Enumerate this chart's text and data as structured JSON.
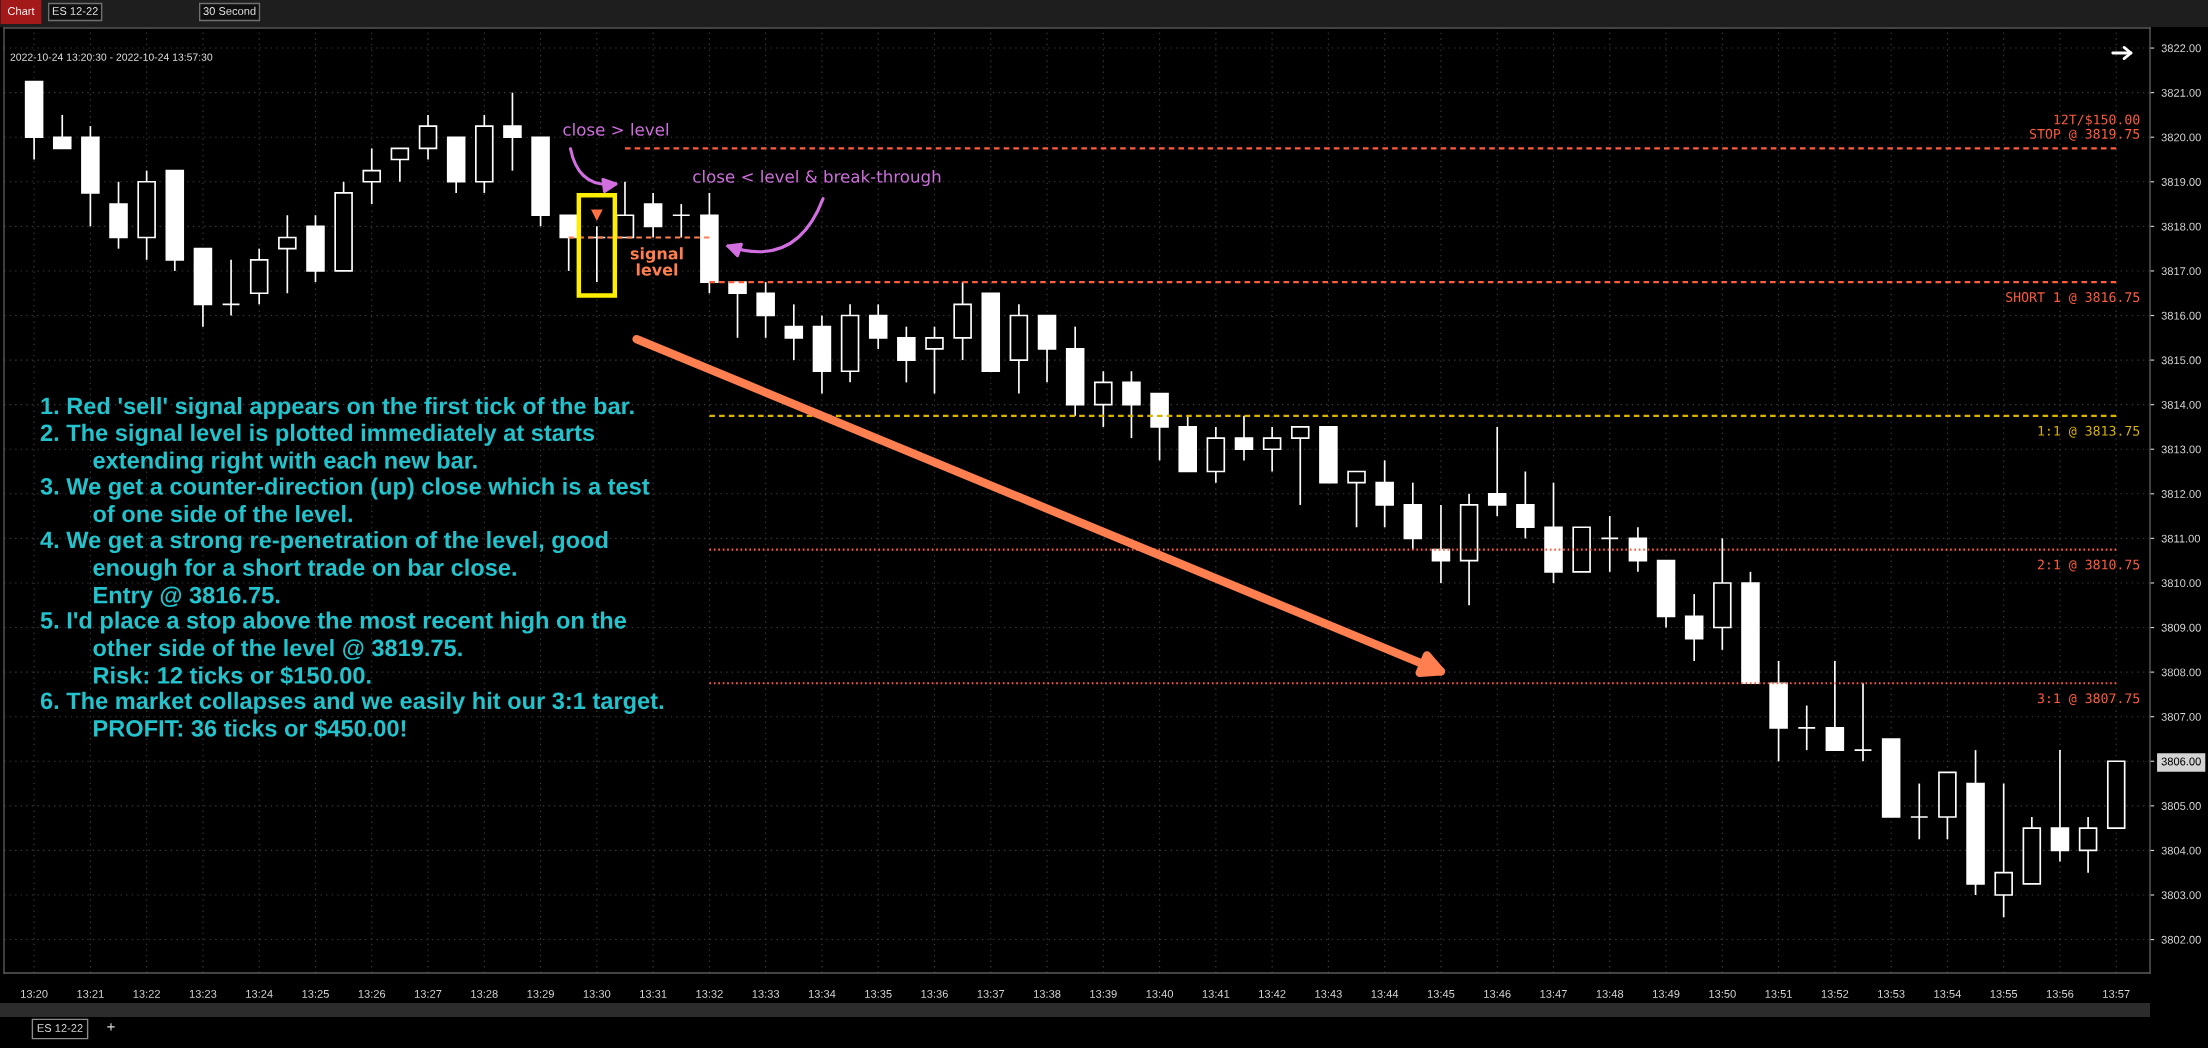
{
  "chart_data": {
    "type": "candlestick",
    "title": "2022-10-24 13:20:30 - 2022-10-24 13:57:30",
    "color": "#ffffff",
    "categories": [
      "13:20",
      null,
      "13:21",
      null,
      "13:22",
      null,
      "13:23",
      null,
      "13:24",
      null,
      "13:25",
      null,
      "13:26",
      null,
      "13:27",
      null,
      "13:28",
      null,
      "13:29",
      null,
      "13:30",
      null,
      "13:31",
      null,
      "13:32",
      null,
      "13:33",
      null,
      "13:34",
      null,
      "13:35",
      null,
      "13:36",
      null,
      "13:37",
      null,
      "13:38",
      null,
      "13:39",
      null,
      "13:40",
      null,
      "13:41",
      null,
      "13:42",
      null,
      "13:43",
      null,
      "13:44",
      null,
      "13:45",
      null,
      "13:46",
      null,
      "13:47",
      null,
      "13:48",
      null,
      "13:49",
      null,
      "13:50",
      null,
      "13:51",
      null,
      "13:52",
      null,
      "13:53",
      null,
      "13:54",
      null,
      "13:55",
      null,
      "13:56",
      null,
      "13:57"
    ],
    "ohlc": [
      [
        3821.25,
        3821.25,
        3819.5,
        3820.0
      ],
      [
        3820.0,
        3820.5,
        3819.75,
        3819.75
      ],
      [
        3820.0,
        3820.25,
        3818.0,
        3818.75
      ],
      [
        3818.5,
        3819.0,
        3817.5,
        3817.75
      ],
      [
        3817.75,
        3819.25,
        3817.25,
        3819.0
      ],
      [
        3819.25,
        3819.25,
        3817.0,
        3817.25
      ],
      [
        3817.5,
        3817.5,
        3815.75,
        3816.25
      ],
      [
        3816.25,
        3817.25,
        3816.0,
        3816.25
      ],
      [
        3816.5,
        3817.5,
        3816.25,
        3817.25
      ],
      [
        3817.5,
        3818.25,
        3816.5,
        3817.75
      ],
      [
        3818.0,
        3818.25,
        3816.75,
        3817.0
      ],
      [
        3817.0,
        3819.0,
        3817.0,
        3818.75
      ],
      [
        3819.0,
        3819.75,
        3818.5,
        3819.25
      ],
      [
        3819.5,
        3819.75,
        3819.0,
        3819.75
      ],
      [
        3819.75,
        3820.5,
        3819.5,
        3820.25
      ],
      [
        3820.0,
        3820.0,
        3818.75,
        3819.0
      ],
      [
        3819.0,
        3820.5,
        3818.75,
        3820.25
      ],
      [
        3820.25,
        3821.0,
        3819.25,
        3820.0
      ],
      [
        3820.0,
        3820.0,
        3818.0,
        3818.25
      ],
      [
        3818.25,
        3818.25,
        3817.0,
        3817.75
      ],
      [
        3817.75,
        3818.0,
        3816.75,
        3817.75
      ],
      [
        3817.75,
        3819.0,
        3817.75,
        3818.25
      ],
      [
        3818.5,
        3818.75,
        3817.75,
        3818.0
      ],
      [
        3818.25,
        3818.5,
        3817.75,
        3818.25
      ],
      [
        3818.25,
        3818.75,
        3816.5,
        3816.75
      ],
      [
        3816.75,
        3816.75,
        3815.5,
        3816.5
      ],
      [
        3816.5,
        3816.75,
        3815.5,
        3816.0
      ],
      [
        3815.75,
        3816.25,
        3815.0,
        3815.5
      ],
      [
        3815.75,
        3816.0,
        3814.25,
        3814.75
      ],
      [
        3814.75,
        3816.25,
        3814.5,
        3816.0
      ],
      [
        3816.0,
        3816.25,
        3815.25,
        3815.5
      ],
      [
        3815.5,
        3815.75,
        3814.5,
        3815.0
      ],
      [
        3815.25,
        3815.75,
        3814.25,
        3815.5
      ],
      [
        3815.5,
        3816.75,
        3815.0,
        3816.25
      ],
      [
        3816.5,
        3816.5,
        3814.75,
        3814.75
      ],
      [
        3815.0,
        3816.25,
        3814.25,
        3816.0
      ],
      [
        3816.0,
        3816.0,
        3814.5,
        3815.25
      ],
      [
        3815.25,
        3815.75,
        3813.75,
        3814.0
      ],
      [
        3814.0,
        3814.75,
        3813.5,
        3814.5
      ],
      [
        3814.5,
        3814.75,
        3813.25,
        3814.0
      ],
      [
        3814.25,
        3814.25,
        3812.75,
        3813.5
      ],
      [
        3813.5,
        3813.75,
        3812.5,
        3812.5
      ],
      [
        3812.5,
        3813.5,
        3812.25,
        3813.25
      ],
      [
        3813.25,
        3813.75,
        3812.75,
        3813.0
      ],
      [
        3813.0,
        3813.5,
        3812.5,
        3813.25
      ],
      [
        3813.25,
        3813.5,
        3811.75,
        3813.5
      ],
      [
        3813.5,
        3813.5,
        3812.25,
        3812.25
      ],
      [
        3812.25,
        3812.5,
        3811.25,
        3812.5
      ],
      [
        3812.25,
        3812.75,
        3811.25,
        3811.75
      ],
      [
        3811.75,
        3812.25,
        3810.75,
        3811.0
      ],
      [
        3810.75,
        3811.75,
        3810.0,
        3810.5
      ],
      [
        3810.5,
        3812.0,
        3809.5,
        3811.75
      ],
      [
        3812.0,
        3813.5,
        3811.5,
        3811.75
      ],
      [
        3811.75,
        3812.5,
        3811.0,
        3811.25
      ],
      [
        3811.25,
        3812.25,
        3810.0,
        3810.25
      ],
      [
        3810.25,
        3811.25,
        3810.25,
        3811.25
      ],
      [
        3811.0,
        3811.5,
        3810.25,
        3811.0
      ],
      [
        3811.0,
        3811.25,
        3810.25,
        3810.5
      ],
      [
        3810.5,
        3810.5,
        3809.0,
        3809.25
      ],
      [
        3809.25,
        3809.75,
        3808.25,
        3808.75
      ],
      [
        3809.0,
        3811.0,
        3808.5,
        3810.0
      ],
      [
        3810.0,
        3810.25,
        3807.75,
        3807.75
      ],
      [
        3807.75,
        3808.25,
        3806.0,
        3806.75
      ],
      [
        3806.75,
        3807.25,
        3806.25,
        3806.75
      ],
      [
        3806.75,
        3808.25,
        3806.25,
        3806.25
      ],
      [
        3806.25,
        3807.75,
        3806.0,
        3806.25
      ],
      [
        3806.5,
        3806.5,
        3804.75,
        3804.75
      ],
      [
        3804.75,
        3805.5,
        3804.25,
        3804.75
      ],
      [
        3804.75,
        3805.75,
        3804.25,
        3805.75
      ],
      [
        3805.5,
        3806.25,
        3803.0,
        3803.25
      ],
      [
        3803.0,
        3805.5,
        3802.5,
        3803.5
      ],
      [
        3803.25,
        3804.75,
        3803.25,
        3804.5
      ],
      [
        3804.5,
        3806.25,
        3803.75,
        3804.0
      ],
      [
        3804.0,
        3804.75,
        3803.5,
        3804.5
      ],
      [
        3804.5,
        3806.0,
        3804.5,
        3806.0
      ]
    ],
    "series": [
      {
        "type": "line",
        "name": "12T/$150.00\nSTOP @ 3819.75",
        "color": "#ff5c3e",
        "line_style": "dashed",
        "values": [
          null,
          null,
          null,
          null,
          null,
          null,
          null,
          null,
          null,
          null,
          null,
          null,
          null,
          null,
          null,
          null,
          null,
          null,
          null,
          null,
          null,
          3819.75,
          3819.75,
          3819.75,
          3819.75,
          3819.75,
          3819.75,
          3819.75,
          3819.75,
          3819.75,
          3819.75,
          3819.75,
          3819.75,
          3819.75,
          3819.75,
          3819.75,
          3819.75,
          3819.75,
          3819.75,
          3819.75,
          3819.75,
          3819.75,
          3819.75,
          3819.75,
          3819.75,
          3819.75,
          3819.75,
          3819.75,
          3819.75,
          3819.75,
          3819.75,
          3819.75,
          3819.75,
          3819.75,
          3819.75,
          3819.75,
          3819.75,
          3819.75,
          3819.75,
          3819.75,
          3819.75,
          3819.75,
          3819.75,
          3819.75,
          3819.75,
          3819.75,
          3819.75,
          3819.75,
          3819.75,
          3819.75,
          3819.75,
          3819.75,
          3819.75,
          3819.75,
          3819.75
        ]
      },
      {
        "type": "line",
        "name": "SHORT 1 @ 3816.75",
        "color": "#ff5c3e",
        "line_style": "dashed",
        "values": [
          null,
          null,
          null,
          null,
          null,
          null,
          null,
          null,
          null,
          null,
          null,
          null,
          null,
          null,
          null,
          null,
          null,
          null,
          null,
          null,
          null,
          null,
          null,
          null,
          3816.75,
          3816.75,
          3816.75,
          3816.75,
          3816.75,
          3816.75,
          3816.75,
          3816.75,
          3816.75,
          3816.75,
          3816.75,
          3816.75,
          3816.75,
          3816.75,
          3816.75,
          3816.75,
          3816.75,
          3816.75,
          3816.75,
          3816.75,
          3816.75,
          3816.75,
          3816.75,
          3816.75,
          3816.75,
          3816.75,
          3816.75,
          3816.75,
          3816.75,
          3816.75,
          3816.75,
          3816.75,
          3816.75,
          3816.75,
          3816.75,
          3816.75,
          3816.75,
          3816.75,
          3816.75,
          3816.75,
          3816.75,
          3816.75,
          3816.75,
          3816.75,
          3816.75,
          3816.75,
          3816.75,
          3816.75,
          3816.75,
          3816.75,
          3816.75
        ]
      },
      {
        "type": "line",
        "name": "1:1 @ 3813.75",
        "color": "#d9b300",
        "line_style": "dashed",
        "values": [
          null,
          null,
          null,
          null,
          null,
          null,
          null,
          null,
          null,
          null,
          null,
          null,
          null,
          null,
          null,
          null,
          null,
          null,
          null,
          null,
          null,
          null,
          null,
          null,
          3813.75,
          3813.75,
          3813.75,
          3813.75,
          3813.75,
          3813.75,
          3813.75,
          3813.75,
          3813.75,
          3813.75,
          3813.75,
          3813.75,
          3813.75,
          3813.75,
          3813.75,
          3813.75,
          3813.75,
          3813.75,
          3813.75,
          3813.75,
          3813.75,
          3813.75,
          3813.75,
          3813.75,
          3813.75,
          3813.75,
          3813.75,
          3813.75,
          3813.75,
          3813.75,
          3813.75,
          3813.75,
          3813.75,
          3813.75,
          3813.75,
          3813.75,
          3813.75,
          3813.75,
          3813.75,
          3813.75,
          3813.75,
          3813.75,
          3813.75,
          3813.75,
          3813.75,
          3813.75,
          3813.75,
          3813.75,
          3813.75,
          3813.75,
          3813.75
        ]
      },
      {
        "type": "line",
        "name": "2:1 @ 3810.75",
        "color": "#ff5c3e",
        "line_style": "dotted",
        "values": [
          null,
          null,
          null,
          null,
          null,
          null,
          null,
          null,
          null,
          null,
          null,
          null,
          null,
          null,
          null,
          null,
          null,
          null,
          null,
          null,
          null,
          null,
          null,
          null,
          3810.75,
          3810.75,
          3810.75,
          3810.75,
          3810.75,
          3810.75,
          3810.75,
          3810.75,
          3810.75,
          3810.75,
          3810.75,
          3810.75,
          3810.75,
          3810.75,
          3810.75,
          3810.75,
          3810.75,
          3810.75,
          3810.75,
          3810.75,
          3810.75,
          3810.75,
          3810.75,
          3810.75,
          3810.75,
          3810.75,
          3810.75,
          3810.75,
          3810.75,
          3810.75,
          3810.75,
          3810.75,
          3810.75,
          3810.75,
          3810.75,
          3810.75,
          3810.75,
          3810.75,
          3810.75,
          3810.75,
          3810.75,
          3810.75,
          3810.75,
          3810.75,
          3810.75,
          3810.75,
          3810.75,
          3810.75,
          3810.75,
          3810.75,
          3810.75
        ]
      },
      {
        "type": "line",
        "name": "3:1 @ 3807.75",
        "color": "#ff5c3e",
        "line_style": "dotted",
        "values": [
          null,
          null,
          null,
          null,
          null,
          null,
          null,
          null,
          null,
          null,
          null,
          null,
          null,
          null,
          null,
          null,
          null,
          null,
          null,
          null,
          null,
          null,
          null,
          null,
          3807.75,
          3807.75,
          3807.75,
          3807.75,
          3807.75,
          3807.75,
          3807.75,
          3807.75,
          3807.75,
          3807.75,
          3807.75,
          3807.75,
          3807.75,
          3807.75,
          3807.75,
          3807.75,
          3807.75,
          3807.75,
          3807.75,
          3807.75,
          3807.75,
          3807.75,
          3807.75,
          3807.75,
          3807.75,
          3807.75,
          3807.75,
          3807.75,
          3807.75,
          3807.75,
          3807.75,
          3807.75,
          3807.75,
          3807.75,
          3807.75,
          3807.75,
          3807.75,
          3807.75,
          3807.75,
          3807.75,
          3807.75,
          3807.75,
          3807.75,
          3807.75,
          3807.75,
          3807.75,
          3807.75,
          3807.75,
          3807.75,
          3807.75,
          3807.75
        ]
      },
      {
        "type": "line",
        "color": "#ff7f50",
        "line_style": "dashed",
        "values": [
          null,
          null,
          null,
          null,
          null,
          null,
          null,
          null,
          null,
          null,
          null,
          null,
          null,
          null,
          null,
          null,
          null,
          null,
          null,
          3817.75,
          3817.75,
          3817.75,
          3817.75,
          3817.75,
          3817.75,
          null,
          null,
          null,
          null,
          null,
          null,
          null,
          null,
          null,
          null,
          null,
          null,
          null,
          null,
          null,
          null,
          null,
          null,
          null,
          null,
          null,
          null,
          null,
          null,
          null,
          null,
          null,
          null,
          null,
          null,
          null,
          null,
          null,
          null,
          null,
          null,
          null,
          null,
          null,
          null,
          null,
          null,
          null,
          null,
          null,
          null,
          null,
          null,
          null,
          null
        ]
      },
      {
        "type": "scatter",
        "color": "#ff7043",
        "marker": "triangle",
        "values": [
          null,
          null,
          null,
          null,
          null,
          null,
          null,
          null,
          null,
          null,
          null,
          null,
          null,
          null,
          null,
          null,
          null,
          null,
          null,
          null,
          3818.25,
          null,
          null,
          null,
          null,
          null,
          null,
          null,
          null,
          null,
          null,
          null,
          null,
          null,
          null,
          null,
          null,
          null,
          null,
          null,
          null,
          null,
          null,
          null,
          null,
          null,
          null,
          null,
          null,
          null,
          null,
          null,
          null,
          null,
          null,
          null,
          null,
          null,
          null,
          null,
          null,
          null,
          null,
          null,
          null,
          null,
          null,
          null,
          null,
          null,
          null,
          null,
          null,
          null,
          null
        ]
      }
    ],
    "ylim": [
      3801.25,
      3822.45
    ],
    "yticks": [
      {
        "value": 3802,
        "label": "3802.00"
      },
      {
        "value": 3803,
        "label": "3803.00"
      },
      {
        "value": 3804,
        "label": "3804.00"
      },
      {
        "value": 3805,
        "label": "3805.00"
      },
      {
        "value": 3806,
        "label": "3806.00"
      },
      {
        "value": 3807,
        "label": "3807.00"
      },
      {
        "value": 3808,
        "label": "3808.00"
      },
      {
        "value": 3809,
        "label": "3809.00"
      },
      {
        "value": 3810,
        "label": "3810.00"
      },
      {
        "value": 3811,
        "label": "3811.00"
      },
      {
        "value": 3812,
        "label": "3812.00"
      },
      {
        "value": 3813,
        "label": "3813.00"
      },
      {
        "value": 3814,
        "label": "3814.00"
      },
      {
        "value": 3815,
        "label": "3815.00"
      },
      {
        "value": 3816,
        "label": "3816.00"
      },
      {
        "value": 3817,
        "label": "3817.00"
      },
      {
        "value": 3818,
        "label": "3818.00"
      },
      {
        "value": 3819,
        "label": "3819.00"
      },
      {
        "value": 3820,
        "label": "3820.00"
      },
      {
        "value": 3821,
        "label": "3821.00"
      },
      {
        "value": 3822,
        "label": "3822.00"
      }
    ],
    "grid": true,
    "annotations": [
      "Chart",
      "ES 12-22",
      "30 Second",
      "close > level",
      "close < level & break-through",
      "signal\nlevel",
      "1. Red 'sell' signal appears on the first tick of the bar.",
      "2. The signal level is plotted immediately at starts\nextending right with each new bar.",
      "3. We get a counter-direction (up) close which is a test\nof one side of the level.",
      "4. We get a strong re-penetration of the level, good\nenough for a short trade on bar close.\nEntry @ 3816.75.",
      "5. I'd place a stop above the most recent high on the\nother side of the level @ 3819.75.\nRisk: 12 ticks or $150.00.",
      "6. The market collapses and we easily hit our 3:1 target.\nPROFIT: 36 ticks or $450.00!",
      "ES 12-22",
      "+"
    ]
  }
}
